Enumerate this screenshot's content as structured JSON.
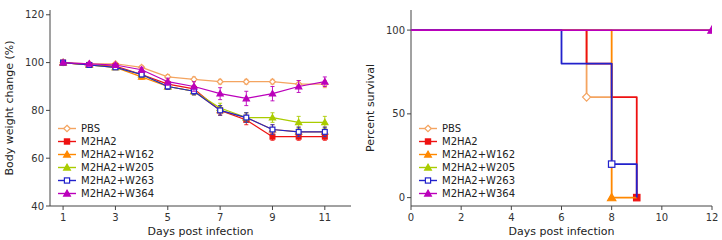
{
  "chart_data": [
    {
      "type": "line",
      "xlabel": "Days post infection",
      "ylabel": "Body weight change (%)",
      "x": [
        1,
        2,
        3,
        4,
        5,
        6,
        7,
        8,
        9,
        10,
        11
      ],
      "xlim": [
        0.5,
        12.0
      ],
      "ylim": [
        40,
        122
      ],
      "xticks": [
        1,
        3,
        5,
        7,
        9,
        11
      ],
      "yticks": [
        40,
        60,
        80,
        100,
        120
      ],
      "legend": "lower left",
      "series": [
        {
          "name": "PBS",
          "color": "#F4A460",
          "marker": "diamond-open",
          "values": [
            100,
            99.5,
            99.5,
            98,
            94,
            93,
            92,
            92,
            92,
            91,
            91
          ],
          "errors": [
            0.5,
            0.5,
            0.5,
            0.8,
            1,
            1,
            1,
            1,
            1,
            1.5,
            1.5
          ]
        },
        {
          "name": "M2HA2",
          "color": "#EE1111",
          "marker": "square",
          "values": [
            100,
            99,
            98.5,
            95,
            91,
            89,
            80,
            76,
            69,
            69,
            69
          ],
          "errors": [
            0.5,
            0.5,
            0.8,
            1,
            1.2,
            1.5,
            2,
            2,
            1.5,
            1.5,
            1.5
          ]
        },
        {
          "name": "M2HA2+W162",
          "color": "#FF8800",
          "marker": "triangle",
          "values": [
            100,
            99,
            98,
            94,
            90,
            88,
            80,
            77,
            72,
            71,
            71
          ],
          "errors": [
            0.5,
            0.5,
            0.8,
            1,
            1.2,
            1.5,
            2,
            2,
            2,
            2,
            2
          ]
        },
        {
          "name": "M2HA2+W205",
          "color": "#AACC00",
          "marker": "triangle",
          "values": [
            100,
            99,
            98,
            95,
            90,
            88,
            81,
            77,
            77,
            75,
            75
          ],
          "errors": [
            0.5,
            0.5,
            0.8,
            1,
            1.2,
            1.5,
            2,
            2,
            2,
            2.5,
            2.5
          ]
        },
        {
          "name": "M2HA2+W263",
          "color": "#2222CC",
          "marker": "square-open",
          "values": [
            100,
            99,
            98,
            95,
            90,
            88,
            80,
            77,
            72,
            71,
            71
          ],
          "errors": [
            0.5,
            0.5,
            0.8,
            1,
            1.2,
            1.5,
            2,
            2,
            2,
            2,
            2
          ]
        },
        {
          "name": "M2HA2+W364",
          "color": "#BB00BB",
          "marker": "triangle",
          "values": [
            100,
            99.5,
            99,
            97,
            92,
            90,
            87,
            85,
            87,
            90,
            92
          ],
          "errors": [
            0.5,
            0.5,
            0.8,
            1,
            1.5,
            2,
            2.5,
            3,
            3,
            2.5,
            2
          ]
        }
      ]
    },
    {
      "type": "line",
      "xlabel": "Days post infection",
      "ylabel": "Percent survival",
      "xlim": [
        0,
        12
      ],
      "ylim": [
        -5,
        112
      ],
      "xticks": [
        0,
        2,
        4,
        6,
        8,
        10,
        12
      ],
      "yticks": [
        0,
        50,
        100
      ],
      "legend": "lower left",
      "series": [
        {
          "name": "PBS",
          "color": "#F4A460",
          "marker": "diamond-open",
          "x": [
            0,
            7,
            7,
            8
          ],
          "values": [
            100,
            100,
            60,
            60
          ],
          "censored": {
            "x": 7,
            "y": 60
          }
        },
        {
          "name": "M2HA2",
          "color": "#EE1111",
          "marker": "square",
          "x": [
            0,
            7,
            7,
            8,
            8,
            9,
            9
          ],
          "values": [
            100,
            100,
            80,
            80,
            60,
            60,
            0
          ],
          "censored": {
            "x": 9,
            "y": 0
          }
        },
        {
          "name": "M2HA2+W162",
          "color": "#FF8800",
          "marker": "triangle",
          "x": [
            0,
            8,
            8,
            9
          ],
          "values": [
            100,
            100,
            0,
            0
          ],
          "censored": {
            "x": 8,
            "y": 0
          }
        },
        {
          "name": "M2HA2+W205",
          "color": "#AACC00",
          "marker": "triangle",
          "x": [
            0,
            12
          ],
          "values": [
            100,
            100
          ],
          "censored": null
        },
        {
          "name": "M2HA2+W263",
          "color": "#2222CC",
          "marker": "square-open",
          "x": [
            0,
            6,
            6,
            8,
            8,
            9,
            9
          ],
          "values": [
            100,
            100,
            80,
            80,
            20,
            20,
            0
          ],
          "censored": {
            "x": 8,
            "y": 20
          }
        },
        {
          "name": "M2HA2+W364",
          "color": "#BB00BB",
          "marker": "triangle",
          "x": [
            0,
            12
          ],
          "values": [
            100,
            100
          ],
          "censored": {
            "x": 12,
            "y": 100
          }
        }
      ]
    }
  ]
}
